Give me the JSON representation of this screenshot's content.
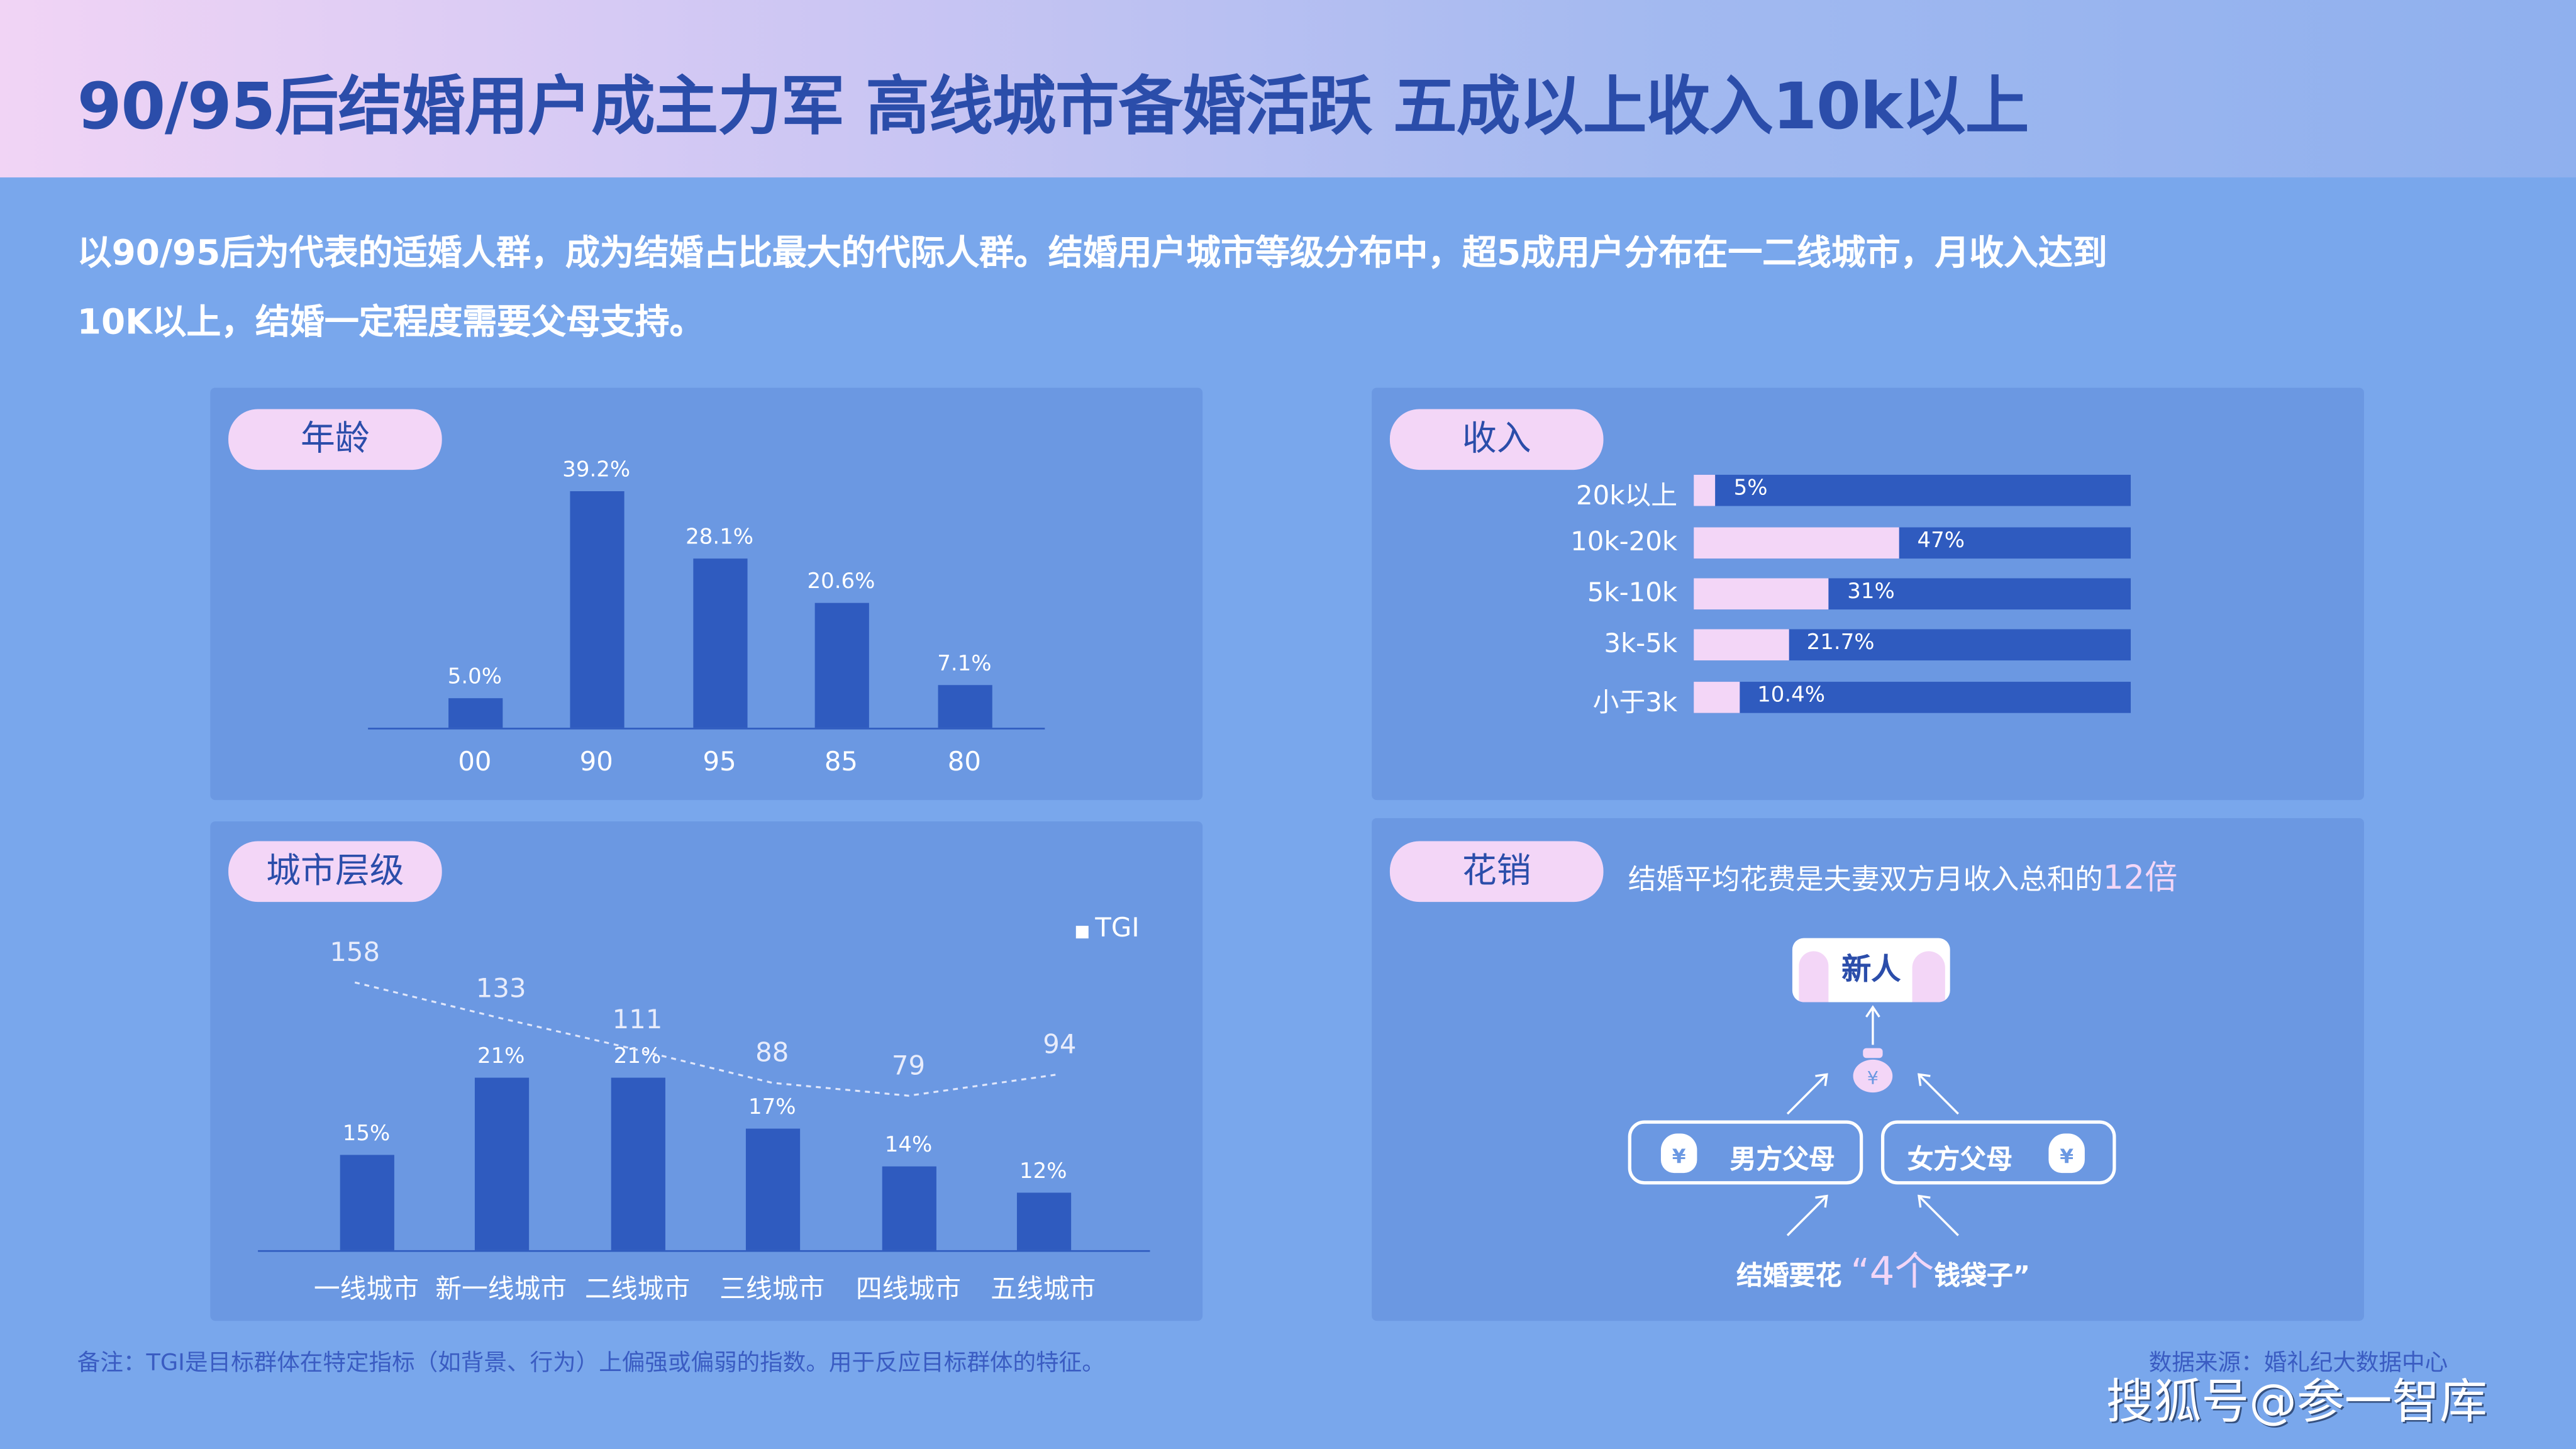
{
  "header": {
    "title": "90/95后结婚用户成主力军 高线城市备婚活跃 五成以上收入10k以上"
  },
  "intro": {
    "line1": "以90/95后为代表的适婚人群，成为结婚占比最大的代际人群。结婚用户城市等级分布中，超5成用户分布在一二线城市，月收入达到",
    "line2": "10K以上，结婚一定程度需要父母支持。"
  },
  "colors": {
    "background": "#79a7ec",
    "panel": "#6b98e2",
    "bar": "#2f5bbf",
    "pill": "#f3d6f7",
    "title": "#2b4daa"
  },
  "chart_data": [
    {
      "type": "bar",
      "title": "年龄",
      "categories": [
        "00",
        "90",
        "95",
        "85",
        "80"
      ],
      "values": [
        5.0,
        39.2,
        28.1,
        20.6,
        7.1
      ],
      "labels": [
        "5.0%",
        "39.2%",
        "28.1%",
        "20.6%",
        "7.1%"
      ]
    },
    {
      "type": "bar",
      "orientation": "horizontal",
      "title": "收入",
      "categories": [
        "20k以上",
        "10k-20k",
        "5k-10k",
        "3k-5k",
        "小于3k"
      ],
      "values": [
        5,
        47,
        31,
        21.7,
        10.4
      ],
      "labels": [
        "5%",
        "47%",
        "31%",
        "21.7%",
        "10.4%"
      ],
      "xlim": [
        0,
        100
      ]
    },
    {
      "type": "bar+line",
      "title": "城市层级",
      "categories": [
        "一线城市",
        "新一线城市",
        "二线城市",
        "三线城市",
        "四线城市",
        "五线城市"
      ],
      "series": [
        {
          "type": "bar",
          "values": [
            15,
            21,
            21,
            17,
            14,
            12
          ],
          "labels": [
            "15%",
            "21%",
            "21%",
            "17%",
            "14%",
            "12%"
          ]
        },
        {
          "type": "line",
          "name": "TGI",
          "values": [
            158,
            133,
            111,
            88,
            79,
            94
          ],
          "labels": [
            "158",
            "133",
            "111",
            "88",
            "79",
            "94"
          ]
        }
      ],
      "legend": "top-right"
    }
  ],
  "spend": {
    "title": "花销",
    "desc": "结婚平均花费是夫妻双方月收入总和的",
    "desc_highlight": "12倍",
    "newlywed": "新人",
    "groom_parents": "男方父母",
    "bride_parents": "女方父母",
    "bottom_pre": "结婚要花",
    "bottom_quote_open": "“",
    "bottom_num": "4个",
    "bottom_post": "钱袋子”"
  },
  "footer": {
    "note": "备注：TGI是目标群体在特定指标（如背景、行为）上偏强或偏弱的指数。用于反应目标群体的特征。",
    "source": "数据来源：婚礼纪大数据中心",
    "watermark": "搜狐号@参一智库"
  }
}
